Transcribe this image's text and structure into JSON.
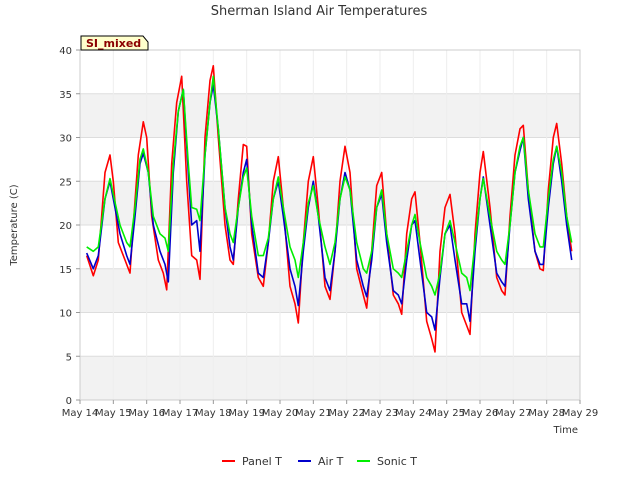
{
  "chart_data": {
    "type": "line",
    "title": "Sherman Island Air Temperatures",
    "xlabel": "Time",
    "ylabel": "Temperature (C)",
    "ylim": [
      0,
      40
    ],
    "yticks": [
      0,
      5,
      10,
      15,
      20,
      25,
      30,
      35,
      40
    ],
    "xlim": [
      14,
      29
    ],
    "xticks": [
      {
        "v": 14,
        "label": "May 14"
      },
      {
        "v": 15,
        "label": "May 15"
      },
      {
        "v": 16,
        "label": "May 16"
      },
      {
        "v": 17,
        "label": "May 17"
      },
      {
        "v": 18,
        "label": "May 18"
      },
      {
        "v": 19,
        "label": "May 19"
      },
      {
        "v": 20,
        "label": "May 20"
      },
      {
        "v": 21,
        "label": "May 21"
      },
      {
        "v": 22,
        "label": "May 22"
      },
      {
        "v": 23,
        "label": "May 23"
      },
      {
        "v": 24,
        "label": "May 24"
      },
      {
        "v": 25,
        "label": "May 25"
      },
      {
        "v": 26,
        "label": "May 26"
      },
      {
        "v": 27,
        "label": "May 27"
      },
      {
        "v": 28,
        "label": "May 28"
      },
      {
        "v": 29,
        "label": "May 29"
      }
    ],
    "grid": true,
    "legend_position": "bottom",
    "annotation": "SI_mixed",
    "series": [
      {
        "name": "Panel T",
        "color": "#ff0000",
        "points": [
          [
            14.2,
            16.5
          ],
          [
            14.4,
            14.2
          ],
          [
            14.55,
            16
          ],
          [
            14.75,
            26
          ],
          [
            14.9,
            28
          ],
          [
            15.0,
            25
          ],
          [
            15.15,
            18
          ],
          [
            15.35,
            16
          ],
          [
            15.5,
            14.5
          ],
          [
            15.6,
            20
          ],
          [
            15.75,
            28
          ],
          [
            15.9,
            31.8
          ],
          [
            16.0,
            30
          ],
          [
            16.15,
            21
          ],
          [
            16.35,
            16
          ],
          [
            16.5,
            14.5
          ],
          [
            16.6,
            12.6
          ],
          [
            16.75,
            27
          ],
          [
            16.9,
            34
          ],
          [
            17.05,
            37
          ],
          [
            17.2,
            25
          ],
          [
            17.35,
            16.5
          ],
          [
            17.5,
            16
          ],
          [
            17.6,
            13.8
          ],
          [
            17.75,
            30
          ],
          [
            17.9,
            36.5
          ],
          [
            18.0,
            38.2
          ],
          [
            18.15,
            30
          ],
          [
            18.35,
            20
          ],
          [
            18.5,
            16
          ],
          [
            18.6,
            15.5
          ],
          [
            18.75,
            23
          ],
          [
            18.9,
            29.2
          ],
          [
            19.0,
            29
          ],
          [
            19.15,
            19
          ],
          [
            19.35,
            14
          ],
          [
            19.5,
            13
          ],
          [
            19.65,
            18
          ],
          [
            19.8,
            25
          ],
          [
            19.95,
            27.8
          ],
          [
            20.1,
            22
          ],
          [
            20.3,
            13
          ],
          [
            20.45,
            11
          ],
          [
            20.55,
            8.8
          ],
          [
            20.7,
            18
          ],
          [
            20.85,
            25
          ],
          [
            21.0,
            27.8
          ],
          [
            21.15,
            22
          ],
          [
            21.35,
            13
          ],
          [
            21.5,
            11.5
          ],
          [
            21.65,
            17
          ],
          [
            21.8,
            25
          ],
          [
            21.95,
            29
          ],
          [
            22.1,
            26
          ],
          [
            22.3,
            15
          ],
          [
            22.5,
            12
          ],
          [
            22.6,
            10.5
          ],
          [
            22.75,
            17
          ],
          [
            22.9,
            24.5
          ],
          [
            23.05,
            26
          ],
          [
            23.2,
            19
          ],
          [
            23.4,
            12
          ],
          [
            23.55,
            11
          ],
          [
            23.65,
            9.8
          ],
          [
            23.8,
            19
          ],
          [
            23.95,
            23
          ],
          [
            24.05,
            23.8
          ],
          [
            24.2,
            18
          ],
          [
            24.4,
            9
          ],
          [
            24.55,
            7
          ],
          [
            24.65,
            5.5
          ],
          [
            24.8,
            17
          ],
          [
            24.95,
            22
          ],
          [
            25.1,
            23.5
          ],
          [
            25.25,
            19
          ],
          [
            25.45,
            10
          ],
          [
            25.6,
            8.5
          ],
          [
            25.7,
            7.5
          ],
          [
            25.85,
            19
          ],
          [
            26.0,
            26
          ],
          [
            26.1,
            28.4
          ],
          [
            26.3,
            22
          ],
          [
            26.5,
            14
          ],
          [
            26.65,
            12.5
          ],
          [
            26.75,
            12
          ],
          [
            26.9,
            21
          ],
          [
            27.05,
            28
          ],
          [
            27.2,
            31
          ],
          [
            27.3,
            31.4
          ],
          [
            27.45,
            24
          ],
          [
            27.65,
            17
          ],
          [
            27.8,
            15
          ],
          [
            27.9,
            14.8
          ],
          [
            28.05,
            24
          ],
          [
            28.2,
            30
          ],
          [
            28.3,
            31.6
          ],
          [
            28.45,
            27
          ],
          [
            28.6,
            21
          ],
          [
            28.75,
            17
          ]
        ]
      },
      {
        "name": "Air T",
        "color": "#0000cc",
        "points": [
          [
            14.2,
            16.8
          ],
          [
            14.4,
            15
          ],
          [
            14.55,
            16.5
          ],
          [
            14.75,
            23
          ],
          [
            14.9,
            25
          ],
          [
            15.0,
            23
          ],
          [
            15.2,
            19
          ],
          [
            15.4,
            16.5
          ],
          [
            15.5,
            15.5
          ],
          [
            15.65,
            21
          ],
          [
            15.8,
            27
          ],
          [
            15.9,
            28.2
          ],
          [
            16.05,
            26
          ],
          [
            16.2,
            20
          ],
          [
            16.4,
            17
          ],
          [
            16.55,
            15.5
          ],
          [
            16.65,
            13.5
          ],
          [
            16.8,
            26
          ],
          [
            16.95,
            33
          ],
          [
            17.1,
            35.5
          ],
          [
            17.25,
            26
          ],
          [
            17.35,
            20
          ],
          [
            17.5,
            20.5
          ],
          [
            17.6,
            17
          ],
          [
            17.75,
            28
          ],
          [
            17.9,
            34
          ],
          [
            18.0,
            36
          ],
          [
            18.15,
            31
          ],
          [
            18.35,
            22
          ],
          [
            18.5,
            17.5
          ],
          [
            18.6,
            16
          ],
          [
            18.75,
            22
          ],
          [
            18.9,
            26
          ],
          [
            19.0,
            27.5
          ],
          [
            19.15,
            20
          ],
          [
            19.35,
            14.5
          ],
          [
            19.5,
            14
          ],
          [
            19.65,
            18
          ],
          [
            19.8,
            23
          ],
          [
            19.95,
            25
          ],
          [
            20.1,
            21
          ],
          [
            20.3,
            15
          ],
          [
            20.45,
            13
          ],
          [
            20.55,
            10.8
          ],
          [
            20.7,
            17
          ],
          [
            20.85,
            22
          ],
          [
            21.0,
            25
          ],
          [
            21.15,
            21
          ],
          [
            21.35,
            14
          ],
          [
            21.5,
            12.5
          ],
          [
            21.65,
            17
          ],
          [
            21.8,
            23
          ],
          [
            21.95,
            26
          ],
          [
            22.1,
            24
          ],
          [
            22.3,
            16
          ],
          [
            22.5,
            13
          ],
          [
            22.6,
            11.8
          ],
          [
            22.75,
            16
          ],
          [
            22.9,
            22
          ],
          [
            23.05,
            23.5
          ],
          [
            23.2,
            18
          ],
          [
            23.4,
            12.5
          ],
          [
            23.55,
            12
          ],
          [
            23.65,
            11
          ],
          [
            23.8,
            16
          ],
          [
            23.95,
            20
          ],
          [
            24.05,
            20.5
          ],
          [
            24.2,
            16
          ],
          [
            24.4,
            10
          ],
          [
            24.55,
            9.5
          ],
          [
            24.65,
            8
          ],
          [
            24.8,
            14
          ],
          [
            24.95,
            19
          ],
          [
            25.1,
            20
          ],
          [
            25.25,
            16
          ],
          [
            25.45,
            11
          ],
          [
            25.6,
            11
          ],
          [
            25.7,
            9
          ],
          [
            25.85,
            17
          ],
          [
            26.0,
            23
          ],
          [
            26.1,
            25.5
          ],
          [
            26.3,
            20
          ],
          [
            26.5,
            14.5
          ],
          [
            26.65,
            13.5
          ],
          [
            26.75,
            13
          ],
          [
            26.9,
            20
          ],
          [
            27.05,
            26
          ],
          [
            27.2,
            28.5
          ],
          [
            27.3,
            30
          ],
          [
            27.45,
            23
          ],
          [
            27.65,
            17
          ],
          [
            27.8,
            15.5
          ],
          [
            27.9,
            15.5
          ],
          [
            28.05,
            22
          ],
          [
            28.2,
            27
          ],
          [
            28.3,
            29
          ],
          [
            28.45,
            25
          ],
          [
            28.6,
            20
          ],
          [
            28.75,
            16
          ]
        ]
      },
      {
        "name": "Sonic T",
        "color": "#00ee00",
        "points": [
          [
            14.2,
            17.5
          ],
          [
            14.4,
            17
          ],
          [
            14.55,
            17.5
          ],
          [
            14.75,
            23
          ],
          [
            14.9,
            25.3
          ],
          [
            15.0,
            23.5
          ],
          [
            15.2,
            20
          ],
          [
            15.4,
            18
          ],
          [
            15.5,
            17.5
          ],
          [
            15.65,
            22
          ],
          [
            15.8,
            27.5
          ],
          [
            15.9,
            28.7
          ],
          [
            16.05,
            26
          ],
          [
            16.2,
            21
          ],
          [
            16.4,
            19
          ],
          [
            16.55,
            18.5
          ],
          [
            16.65,
            17
          ],
          [
            16.8,
            27
          ],
          [
            16.95,
            33
          ],
          [
            17.1,
            35.5
          ],
          [
            17.25,
            27
          ],
          [
            17.35,
            22
          ],
          [
            17.5,
            21.8
          ],
          [
            17.6,
            20.5
          ],
          [
            17.75,
            28
          ],
          [
            17.9,
            34
          ],
          [
            18.0,
            37
          ],
          [
            18.15,
            31
          ],
          [
            18.35,
            22
          ],
          [
            18.5,
            19
          ],
          [
            18.6,
            18
          ],
          [
            18.75,
            22
          ],
          [
            18.9,
            25.5
          ],
          [
            19.0,
            26.5
          ],
          [
            19.15,
            21
          ],
          [
            19.35,
            16.5
          ],
          [
            19.5,
            16.5
          ],
          [
            19.65,
            18.5
          ],
          [
            19.8,
            23
          ],
          [
            19.95,
            25.5
          ],
          [
            20.1,
            22
          ],
          [
            20.3,
            17.5
          ],
          [
            20.45,
            16
          ],
          [
            20.55,
            14
          ],
          [
            20.7,
            18
          ],
          [
            20.85,
            22.5
          ],
          [
            21.0,
            24.5
          ],
          [
            21.15,
            21
          ],
          [
            21.35,
            17.5
          ],
          [
            21.5,
            15.5
          ],
          [
            21.65,
            18
          ],
          [
            21.8,
            23
          ],
          [
            21.95,
            25.5
          ],
          [
            22.1,
            24
          ],
          [
            22.3,
            18
          ],
          [
            22.5,
            15
          ],
          [
            22.6,
            14.5
          ],
          [
            22.75,
            17
          ],
          [
            22.9,
            22
          ],
          [
            23.05,
            24
          ],
          [
            23.2,
            19
          ],
          [
            23.4,
            15
          ],
          [
            23.55,
            14.5
          ],
          [
            23.65,
            14
          ],
          [
            23.8,
            17
          ],
          [
            23.95,
            20
          ],
          [
            24.05,
            21.2
          ],
          [
            24.2,
            18
          ],
          [
            24.4,
            14
          ],
          [
            24.55,
            13
          ],
          [
            24.65,
            12
          ],
          [
            24.8,
            14.5
          ],
          [
            24.95,
            19
          ],
          [
            25.1,
            20.5
          ],
          [
            25.25,
            18
          ],
          [
            25.45,
            14.5
          ],
          [
            25.6,
            14
          ],
          [
            25.7,
            12.5
          ],
          [
            25.85,
            18
          ],
          [
            26.0,
            23
          ],
          [
            26.1,
            25.3
          ],
          [
            26.3,
            21
          ],
          [
            26.5,
            17
          ],
          [
            26.65,
            16
          ],
          [
            26.75,
            15.5
          ],
          [
            26.9,
            20
          ],
          [
            27.05,
            26
          ],
          [
            27.2,
            29
          ],
          [
            27.3,
            30
          ],
          [
            27.45,
            24
          ],
          [
            27.65,
            19
          ],
          [
            27.8,
            17.5
          ],
          [
            27.9,
            17.5
          ],
          [
            28.05,
            23
          ],
          [
            28.2,
            27.5
          ],
          [
            28.3,
            29
          ],
          [
            28.45,
            26
          ],
          [
            28.6,
            21
          ],
          [
            28.75,
            18
          ]
        ]
      }
    ]
  }
}
